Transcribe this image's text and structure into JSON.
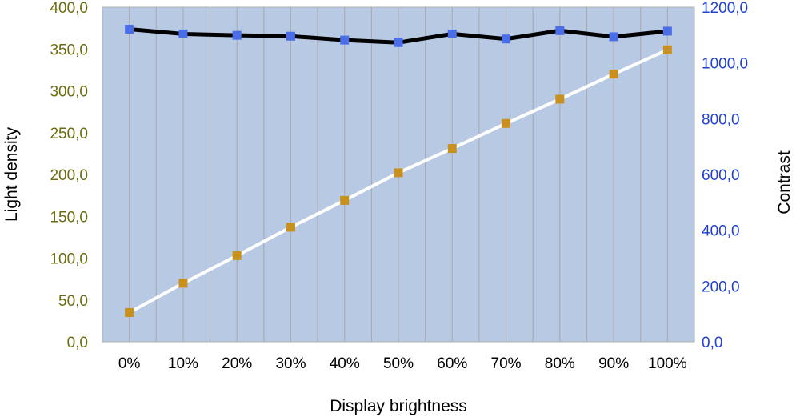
{
  "chart_data": {
    "type": "line",
    "xlabel": "Display brightness",
    "ylabel_left": "Light density",
    "ylabel_right": "Contrast",
    "categories": [
      "0%",
      "10%",
      "20%",
      "30%",
      "40%",
      "50%",
      "60%",
      "70%",
      "80%",
      "90%",
      "100%"
    ],
    "y_left": {
      "min": 0,
      "max": 400,
      "step": 50,
      "tick_labels": [
        "0,0",
        "50,0",
        "100,0",
        "150,0",
        "200,0",
        "250,0",
        "300,0",
        "350,0",
        "400,0"
      ]
    },
    "y_right": {
      "min": 0,
      "max": 1200,
      "step": 200,
      "tick_labels": [
        "0,0",
        "200,0",
        "400,0",
        "600,0",
        "800,0",
        "1000,0",
        "1200,0"
      ]
    },
    "grid": "vertical",
    "series": [
      {
        "axis": "left",
        "line_color": "#ffffff",
        "marker_color": "#c8901e",
        "values": [
          35,
          70,
          103,
          137,
          169,
          202,
          231,
          261,
          290,
          320,
          349
        ]
      },
      {
        "axis": "right",
        "line_color": "#000000",
        "marker_color": "#4a6ee8",
        "values": [
          1121,
          1104,
          1099,
          1096,
          1082,
          1073,
          1104,
          1086,
          1116,
          1094,
          1114
        ]
      }
    ],
    "colors": {
      "plot_background": "#b7c9e3",
      "grid": "#a8a8a8",
      "left_tick_text": "#6b6b10",
      "right_tick_text": "#1f3fd6"
    }
  }
}
